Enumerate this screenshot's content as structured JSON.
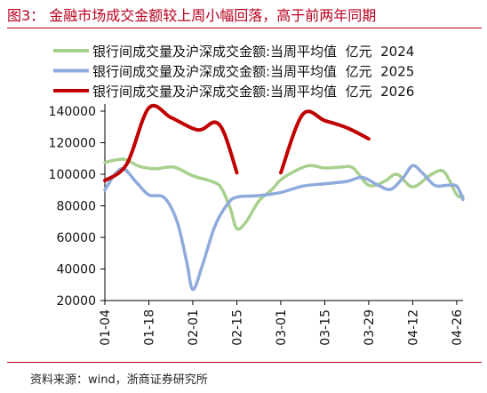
{
  "figure": {
    "title": "图3：  金融市场成交金额较上周小幅回落，高于前两年同期",
    "source": "资料来源：wind，浙商证券研究所"
  },
  "chart_data": {
    "type": "line",
    "title": "",
    "xlabel": "",
    "ylabel": "",
    "ylim": [
      20000,
      140000
    ],
    "yticks": [
      20000,
      40000,
      60000,
      80000,
      100000,
      120000,
      140000
    ],
    "x_tick_labels": [
      "01-04",
      "01-18",
      "02-01",
      "02-15",
      "03-01",
      "03-15",
      "03-29",
      "04-12",
      "04-26"
    ],
    "grid": false,
    "legend_position": "top-right",
    "series": [
      {
        "name": "银行间成交量及沪深成交金额:当周平均值  亿元  2024",
        "color": "#a8d08d",
        "points": [
          [
            "01-04",
            107500
          ],
          [
            "01-10",
            109500
          ],
          [
            "01-15",
            105000
          ],
          [
            "01-20",
            103500
          ],
          [
            "01-26",
            104500
          ],
          [
            "02-01",
            99000
          ],
          [
            "02-07",
            95500
          ],
          [
            "02-10",
            91500
          ],
          [
            "02-13",
            78000
          ],
          [
            "02-15",
            65500
          ],
          [
            "02-18",
            70000
          ],
          [
            "02-22",
            83000
          ],
          [
            "02-26",
            90000
          ],
          [
            "03-01",
            96500
          ],
          [
            "03-05",
            101500
          ],
          [
            "03-10",
            105500
          ],
          [
            "03-15",
            104000
          ],
          [
            "03-20",
            104500
          ],
          [
            "03-24",
            104000
          ],
          [
            "03-29",
            93000
          ],
          [
            "04-03",
            95500
          ],
          [
            "04-07",
            100000
          ],
          [
            "04-12",
            92000
          ],
          [
            "04-18",
            100000
          ],
          [
            "04-22",
            101500
          ],
          [
            "04-26",
            87000
          ],
          [
            "04-28",
            86000
          ]
        ]
      },
      {
        "name": "银行间成交量及沪深成交金额:当周平均值  亿元  2025",
        "color": "#8faadc",
        "points": [
          [
            "01-04",
            90000
          ],
          [
            "01-07",
            99500
          ],
          [
            "01-10",
            103500
          ],
          [
            "01-14",
            95000
          ],
          [
            "01-18",
            87000
          ],
          [
            "01-23",
            85000
          ],
          [
            "01-27",
            70000
          ],
          [
            "01-30",
            45000
          ],
          [
            "02-01",
            27000
          ],
          [
            "02-04",
            42000
          ],
          [
            "02-08",
            67000
          ],
          [
            "02-12",
            81000
          ],
          [
            "02-15",
            85500
          ],
          [
            "02-22",
            86500
          ],
          [
            "03-01",
            88500
          ],
          [
            "03-08",
            92500
          ],
          [
            "03-15",
            94000
          ],
          [
            "03-22",
            95500
          ],
          [
            "03-27",
            98000
          ],
          [
            "04-01",
            93000
          ],
          [
            "04-05",
            90500
          ],
          [
            "04-09",
            98000
          ],
          [
            "04-12",
            105500
          ],
          [
            "04-15",
            101000
          ],
          [
            "04-19",
            93000
          ],
          [
            "04-23",
            93000
          ],
          [
            "04-26",
            92500
          ],
          [
            "04-28",
            84000
          ]
        ]
      },
      {
        "name": "银行间成交量及沪深成交金额:当周平均值  亿元  2026",
        "color": "#c00000",
        "segments": [
          [
            [
              "01-04",
              96000
            ],
            [
              "01-11",
              106500
            ],
            [
              "01-18",
              142000
            ],
            [
              "01-25",
              136000
            ],
            [
              "02-01",
              129000
            ],
            [
              "02-04",
              128500
            ],
            [
              "02-08",
              133000
            ],
            [
              "02-11",
              126000
            ],
            [
              "02-15",
              101000
            ]
          ],
          [
            [
              "03-01",
              101000
            ],
            [
              "03-08",
              138000
            ],
            [
              "03-15",
              134000
            ],
            [
              "03-22",
              129500
            ],
            [
              "03-29",
              122500
            ]
          ]
        ]
      }
    ]
  }
}
